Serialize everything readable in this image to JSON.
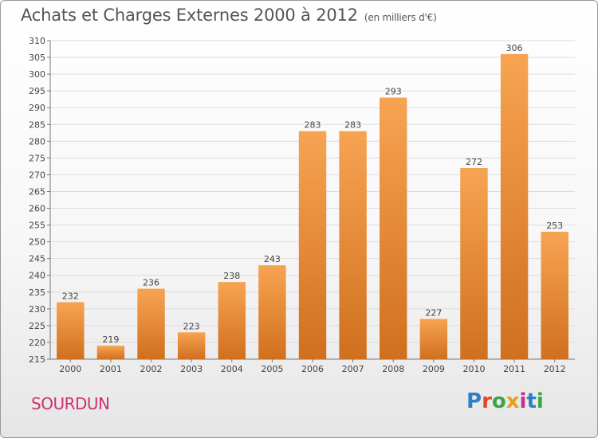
{
  "header": {
    "title": "Achats et Charges Externes 2000 à 2012",
    "subtitle": "(en milliers d'€)"
  },
  "footer": {
    "commune": "SOURDUN",
    "logo_text": "Proxiti",
    "logo_colors": [
      "#2e7fc4",
      "#e04a2a",
      "#3aa642",
      "#e6a11f",
      "#c5318a",
      "#2e7fc4",
      "#3aa642"
    ]
  },
  "colors": {
    "bar_light": "#f7a452",
    "bar_dark": "#d0701e",
    "commune": "#d0306f"
  },
  "chart_data": {
    "type": "bar",
    "title": "Achats et Charges Externes 2000 à 2012",
    "subtitle": "(en milliers d'€)",
    "categories": [
      "2000",
      "2001",
      "2002",
      "2003",
      "2004",
      "2005",
      "2006",
      "2007",
      "2008",
      "2009",
      "2010",
      "2011",
      "2012"
    ],
    "values": [
      232,
      219,
      236,
      223,
      238,
      243,
      283,
      283,
      293,
      227,
      272,
      306,
      253
    ],
    "ylim": [
      215,
      310
    ],
    "yticks": [
      215,
      220,
      225,
      230,
      235,
      240,
      245,
      250,
      255,
      260,
      265,
      270,
      275,
      280,
      285,
      290,
      295,
      300,
      305,
      310
    ],
    "grid": true
  }
}
